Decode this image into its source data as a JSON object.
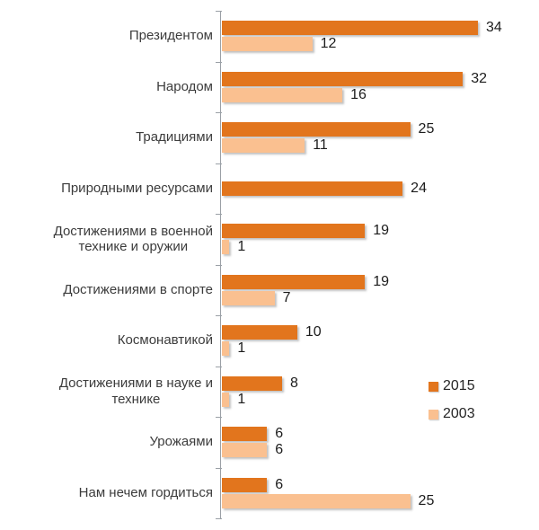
{
  "chart_data": {
    "type": "bar",
    "orientation": "horizontal",
    "categories": [
      "Президентом",
      "Народом",
      "Традициями",
      "Природными ресурсами",
      "Достижениями в военной\nтехнике и оружии",
      "Достижениями в спорте",
      "Космонавтикой",
      "Достижениями в науке и\nтехнике",
      "Урожаями",
      "Нам нечем гордиться"
    ],
    "series": [
      {
        "name": "2015",
        "color": "#E2751D",
        "values": [
          34,
          32,
          25,
          24,
          19,
          19,
          10,
          8,
          6,
          6
        ]
      },
      {
        "name": "2003",
        "color": "#FAC090",
        "values": [
          12,
          16,
          11,
          null,
          1,
          7,
          1,
          1,
          6,
          25
        ]
      }
    ],
    "xlim": [
      0,
      34
    ],
    "grid": false,
    "data_labels": true,
    "axis_color": "#9aa0a6",
    "legend_position": "middle-right"
  }
}
